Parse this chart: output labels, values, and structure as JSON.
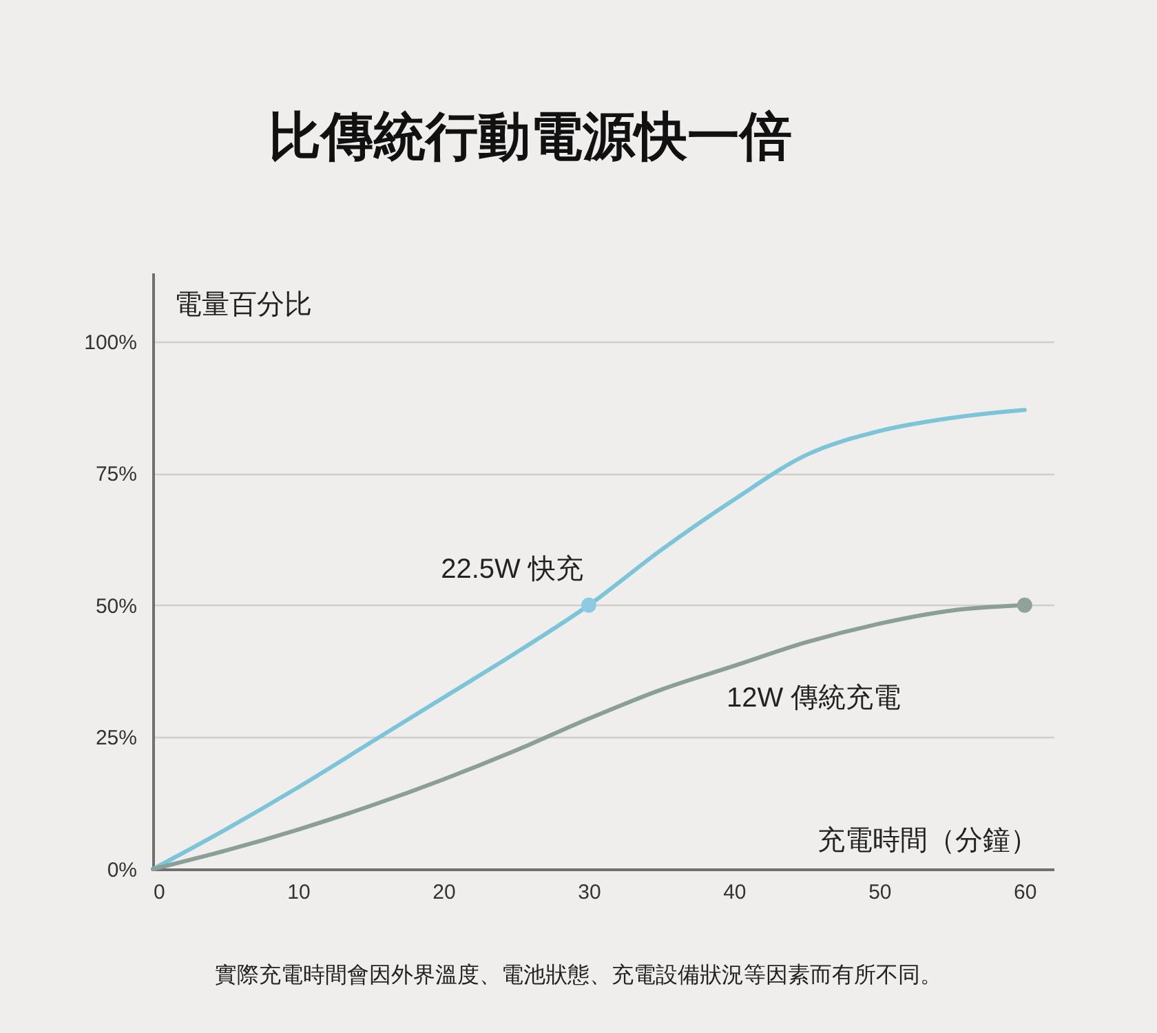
{
  "chart_data": {
    "type": "line",
    "title": "比傳統行動電源快一倍",
    "xlabel": "充電時間（分鐘）",
    "ylabel": "電量百分比",
    "x": [
      0,
      5,
      10,
      15,
      20,
      25,
      30,
      35,
      40,
      45,
      50,
      55,
      60
    ],
    "series": [
      {
        "name": "22.5W 快充",
        "color": "#7cc5d8",
        "values": [
          0,
          7.5,
          15.5,
          24,
          32.5,
          41,
          50,
          60.5,
          70,
          78.5,
          83,
          85.5,
          87
        ]
      },
      {
        "name": "12W 傳統充電",
        "color": "#8a9f97",
        "values": [
          0,
          3.5,
          7.5,
          12,
          17,
          22.5,
          28.5,
          34,
          38.5,
          43,
          46.5,
          49,
          50
        ]
      },
      {
        "type": "scatter",
        "x": [
          30
        ],
        "values": [
          50
        ],
        "color": "#8ecbe2",
        "marker": "circle"
      },
      {
        "type": "scatter",
        "x": [
          60
        ],
        "values": [
          50
        ],
        "color": "#8fa39b",
        "marker": "circle"
      }
    ],
    "xlim": [
      0,
      62
    ],
    "ylim": [
      0,
      113
    ],
    "xticks": [
      0,
      10,
      20,
      30,
      40,
      50,
      60
    ],
    "yticks": [
      {
        "value": 0,
        "label": "0%"
      },
      {
        "value": 25,
        "label": "25%"
      },
      {
        "value": 50,
        "label": "50%"
      },
      {
        "value": 75,
        "label": "75%"
      },
      {
        "value": 100,
        "label": "100%"
      }
    ],
    "grid": "y",
    "annotations": [
      "實際充電時間會因外界溫度、電池狀態、充電設備狀況等因素而有所不同。"
    ]
  }
}
